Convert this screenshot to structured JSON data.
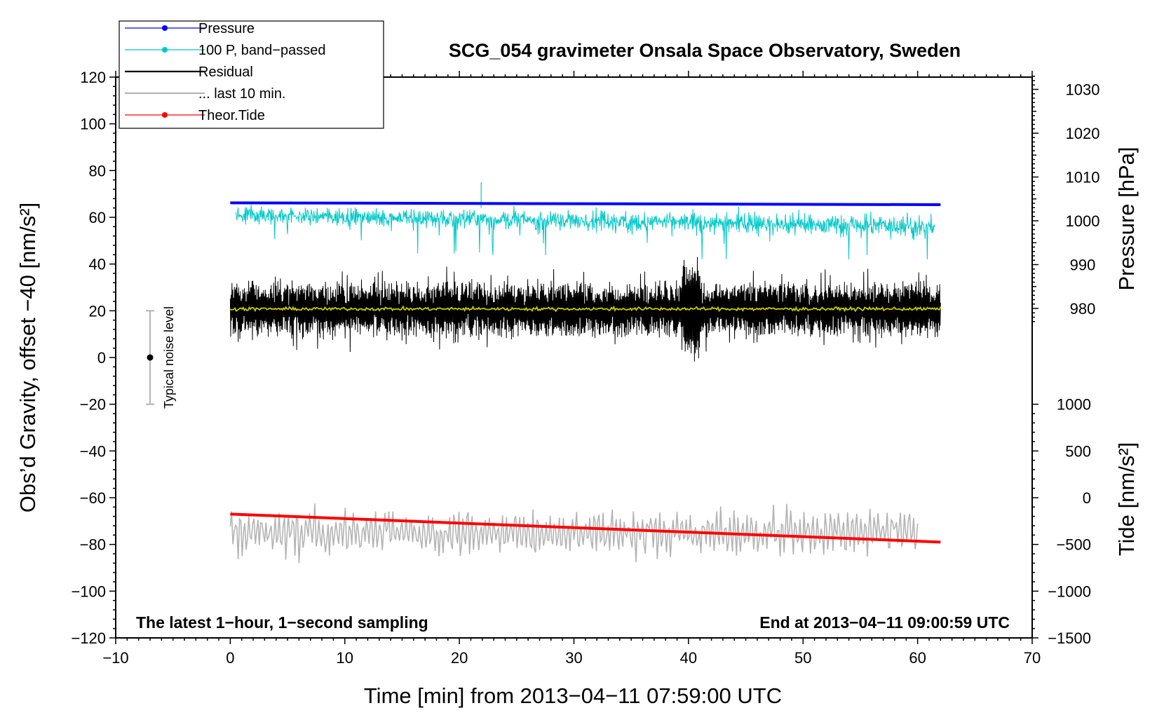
{
  "chart_data": {
    "type": "line",
    "title": "SCG_054 gravimeter Onsala Space Observatory, Sweden",
    "xlabel": "Time [min] from 2013−04−11 07:59:00 UTC",
    "ylabel_left": "Obs’d Gravity, offset −40 [nm/s²]",
    "ylabel_right_top": "Pressure [hPa]",
    "ylabel_right_bottom": "Tide [nm/s²]",
    "xlim": [
      -10,
      70
    ],
    "ylim_left": [
      -120,
      120
    ],
    "xticks": [
      "−10",
      "0",
      "10",
      "20",
      "30",
      "40",
      "50",
      "60",
      "70"
    ],
    "yticks_left": [
      "120",
      "100",
      "80",
      "60",
      "40",
      "20",
      "0",
      "−20",
      "−40",
      "−60",
      "−80",
      "−100",
      "−120"
    ],
    "yticks_pressure": [
      "1030",
      "1020",
      "1010",
      "1000",
      "990",
      "980"
    ],
    "yticks_tide": [
      "1000",
      "500",
      "0",
      "−500",
      "−1000",
      "−1500"
    ],
    "note_left": "The latest 1−hour, 1−second sampling",
    "note_right": "End at 2013−04−11 09:00:59 UTC",
    "noise_label": "Typical noise level",
    "noise_bar": {
      "x": -7,
      "center": 0,
      "half_range": 20
    },
    "legend": [
      {
        "label": "Pressure",
        "color": "#0000ff",
        "marker": true
      },
      {
        "label": "100 P, band−passed",
        "color": "#00c8c8",
        "marker": true
      },
      {
        "label": "Residual",
        "color": "#000000",
        "marker": false
      },
      {
        "label": "... last 10 min.",
        "color": "#b4b4b4",
        "marker": false
      },
      {
        "label": "Theor.Tide",
        "color": "#ff0000",
        "marker": true
      }
    ],
    "series": [
      {
        "name": "Pressure",
        "color": "#0000ff",
        "x_range": [
          0,
          62
        ],
        "y_start": 66.2,
        "y_end": 65.4
      },
      {
        "name": "100 P, band−passed",
        "color": "#00c8c8",
        "x_range": [
          0.5,
          61.5
        ],
        "y_mean": 61,
        "y_end_mean": 56,
        "y_min": 42,
        "y_max": 75
      },
      {
        "name": "Residual",
        "color": "#000000",
        "x_range": [
          0,
          62
        ],
        "y_mean": 20.5,
        "y_min": -2,
        "y_max": 43
      },
      {
        "name": "Residual (smoothed)",
        "color": "#c8c800",
        "x_range": [
          0,
          62
        ],
        "y_mean": 20.8
      },
      {
        "name": "... last 10 min.",
        "color": "#b4b4b4",
        "x_range": [
          0,
          60
        ],
        "y_mean": -75,
        "y_min": -90,
        "y_max": -62
      },
      {
        "name": "Theor.Tide",
        "color": "#ff0000",
        "x_range": [
          0,
          62
        ],
        "y_start": -67,
        "y_end": -79
      }
    ]
  }
}
